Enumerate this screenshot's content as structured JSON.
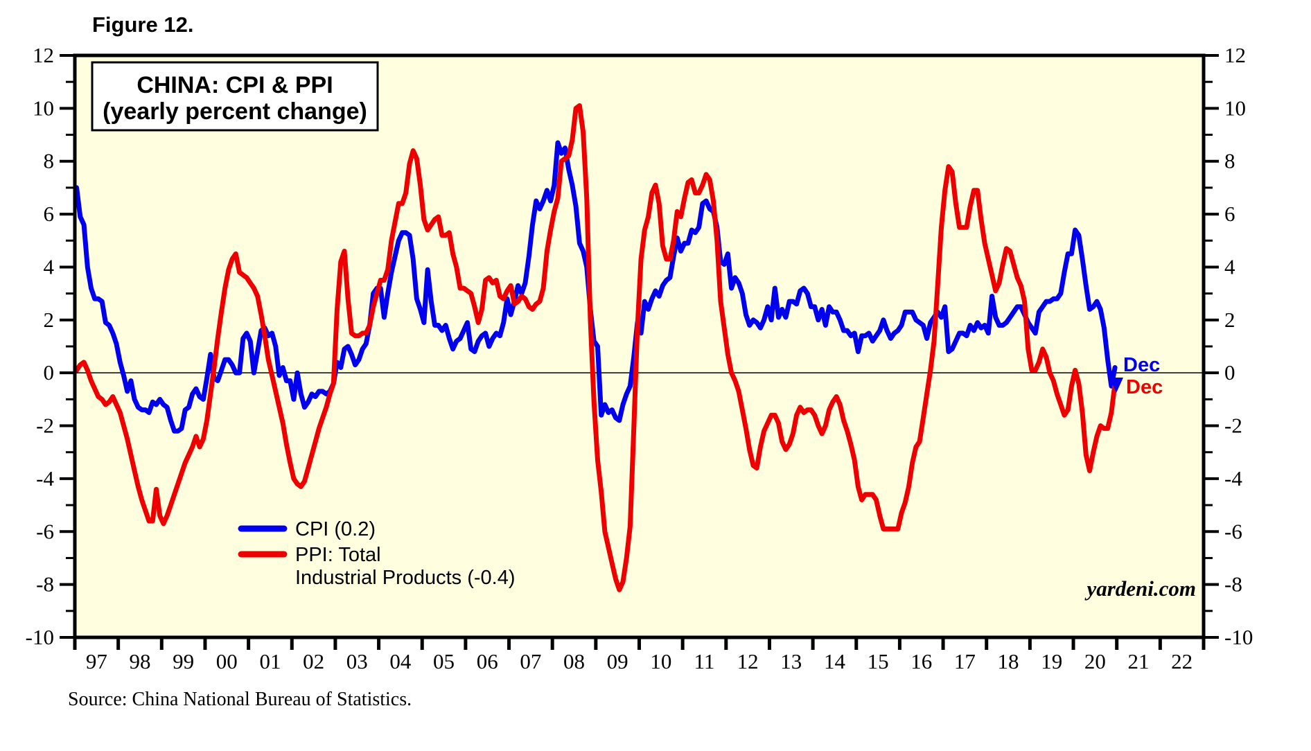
{
  "figure_label": "Figure 12.",
  "title": {
    "line1": "CHINA: CPI & PPI",
    "line2": "(yearly percent change)"
  },
  "legend": {
    "cpi_label": "CPI (0.2)",
    "ppi_label_line1": "PPI: Total",
    "ppi_label_line2": "Industrial Products (-0.4)"
  },
  "end_labels": {
    "cpi": "Dec",
    "ppi": "Dec"
  },
  "watermark": "yardeni.com",
  "source": "Source: China National Bureau of Statistics.",
  "colors": {
    "cpi": "#0000EE",
    "ppi": "#EE0000",
    "plot_background": "#FFFFE0",
    "frame": "#000000"
  },
  "chart_data": {
    "type": "line",
    "title": "CHINA: CPI & PPI (yearly percent change)",
    "frequency": "monthly",
    "x_start": "1997-01",
    "x_end": "2020-12",
    "x_axis_years": [
      1997,
      2023
    ],
    "x_tick_labels": [
      "97",
      "98",
      "99",
      "00",
      "01",
      "02",
      "03",
      "04",
      "05",
      "06",
      "07",
      "08",
      "09",
      "10",
      "11",
      "12",
      "13",
      "14",
      "15",
      "16",
      "17",
      "18",
      "19",
      "20",
      "21",
      "22"
    ],
    "ylim": [
      -10,
      12
    ],
    "y_major_ticks": [
      12,
      10,
      8,
      6,
      4,
      2,
      0,
      -2,
      -4,
      -6,
      -8,
      -10
    ],
    "y_minor_ticks": [
      11,
      9,
      7,
      5,
      3,
      1,
      -1,
      -3,
      -5,
      -7,
      -9
    ],
    "zero_line": true,
    "legend_position": "bottom-left-inside",
    "series": [
      {
        "name": "CPI",
        "color": "#0000EE",
        "last_point_label": "Dec",
        "last_value": 0.2,
        "values": [
          7.0,
          5.9,
          5.6,
          4.0,
          3.2,
          2.8,
          2.8,
          2.7,
          1.9,
          1.8,
          1.5,
          1.1,
          0.4,
          -0.1,
          -0.7,
          -0.3,
          -1.0,
          -1.3,
          -1.4,
          -1.4,
          -1.5,
          -1.1,
          -1.2,
          -1.0,
          -1.2,
          -1.3,
          -1.8,
          -2.2,
          -2.2,
          -2.1,
          -1.4,
          -1.3,
          -0.8,
          -0.6,
          -0.9,
          -1.0,
          -0.2,
          0.7,
          -0.2,
          -0.3,
          0.1,
          0.5,
          0.5,
          0.3,
          0.0,
          0.0,
          1.3,
          1.5,
          1.2,
          0.0,
          0.8,
          1.6,
          1.7,
          1.4,
          1.5,
          1.0,
          -0.1,
          0.2,
          -0.3,
          -0.3,
          -1.0,
          0.0,
          -0.8,
          -1.3,
          -1.1,
          -0.8,
          -0.9,
          -0.7,
          -0.7,
          -0.8,
          -0.7,
          -0.4,
          0.4,
          0.2,
          0.9,
          1.0,
          0.7,
          0.3,
          0.5,
          0.9,
          1.1,
          1.8,
          3.0,
          3.2,
          3.2,
          2.1,
          3.0,
          3.8,
          4.4,
          5.0,
          5.3,
          5.3,
          5.2,
          4.3,
          2.8,
          2.4,
          1.9,
          3.9,
          2.7,
          1.8,
          1.8,
          1.6,
          1.8,
          1.3,
          0.9,
          1.2,
          1.3,
          1.6,
          1.9,
          0.9,
          0.8,
          1.2,
          1.4,
          1.5,
          1.0,
          1.3,
          1.5,
          1.4,
          1.9,
          2.8,
          2.2,
          2.7,
          3.3,
          3.0,
          3.4,
          4.4,
          5.6,
          6.5,
          6.2,
          6.5,
          6.9,
          6.5,
          7.1,
          8.7,
          8.3,
          8.5,
          7.7,
          7.1,
          6.3,
          4.9,
          4.6,
          4.0,
          2.4,
          1.2,
          1.0,
          -1.6,
          -1.2,
          -1.5,
          -1.4,
          -1.7,
          -1.8,
          -1.2,
          -0.8,
          -0.5,
          0.6,
          1.9,
          1.5,
          2.7,
          2.4,
          2.8,
          3.1,
          2.9,
          3.3,
          3.5,
          3.6,
          4.4,
          5.1,
          4.6,
          4.9,
          4.9,
          5.4,
          5.3,
          5.5,
          6.4,
          6.5,
          6.2,
          6.1,
          5.5,
          4.2,
          4.1,
          4.5,
          3.2,
          3.6,
          3.4,
          3.0,
          2.2,
          1.8,
          2.0,
          1.9,
          1.7,
          2.0,
          2.5,
          2.0,
          3.2,
          2.1,
          2.4,
          2.1,
          2.7,
          2.7,
          2.6,
          3.1,
          3.2,
          3.0,
          2.5,
          2.5,
          2.0,
          2.4,
          1.8,
          2.5,
          2.3,
          2.3,
          2.0,
          1.6,
          1.6,
          1.4,
          1.5,
          0.8,
          1.4,
          1.4,
          1.5,
          1.2,
          1.4,
          1.6,
          2.0,
          1.6,
          1.3,
          1.5,
          1.6,
          1.8,
          2.3,
          2.3,
          2.3,
          2.0,
          1.9,
          1.8,
          1.3,
          1.9,
          2.1,
          2.3,
          2.1,
          2.5,
          0.8,
          0.9,
          1.2,
          1.5,
          1.5,
          1.4,
          1.8,
          1.6,
          1.9,
          1.7,
          1.8,
          1.5,
          2.9,
          2.1,
          1.8,
          1.8,
          1.9,
          2.1,
          2.3,
          2.5,
          2.5,
          2.2,
          1.9,
          1.7,
          1.5,
          2.3,
          2.5,
          2.7,
          2.7,
          2.8,
          2.8,
          3.0,
          3.8,
          4.5,
          4.5,
          5.4,
          5.2,
          4.3,
          3.3,
          2.4,
          2.5,
          2.7,
          2.4,
          1.7,
          0.5,
          -0.5,
          0.2
        ]
      },
      {
        "name": "PPI: Total Industrial Products",
        "color": "#EE0000",
        "last_point_label": "Dec",
        "last_value": -0.4,
        "values": [
          0.1,
          0.3,
          0.4,
          0.1,
          -0.3,
          -0.6,
          -0.9,
          -1.0,
          -1.2,
          -1.1,
          -0.9,
          -1.2,
          -1.5,
          -2.0,
          -2.5,
          -3.1,
          -3.7,
          -4.3,
          -4.8,
          -5.2,
          -5.6,
          -5.6,
          -4.4,
          -5.4,
          -5.7,
          -5.4,
          -5.0,
          -4.6,
          -4.2,
          -3.8,
          -3.4,
          -3.1,
          -2.8,
          -2.4,
          -2.8,
          -2.5,
          -1.8,
          -0.8,
          0.2,
          1.3,
          2.3,
          3.2,
          3.9,
          4.3,
          4.5,
          3.8,
          3.7,
          3.6,
          3.4,
          3.2,
          2.9,
          2.2,
          1.4,
          0.5,
          -0.1,
          -0.7,
          -1.3,
          -1.9,
          -2.7,
          -3.4,
          -4.0,
          -4.2,
          -4.3,
          -4.1,
          -3.6,
          -3.1,
          -2.6,
          -2.1,
          -1.7,
          -1.3,
          -0.8,
          -0.4,
          2.4,
          4.2,
          4.6,
          2.8,
          1.5,
          1.4,
          1.4,
          1.5,
          1.5,
          1.8,
          2.5,
          3.0,
          3.5,
          3.5,
          3.9,
          5.0,
          5.7,
          6.4,
          6.4,
          6.8,
          7.9,
          8.4,
          8.1,
          7.1,
          5.8,
          5.4,
          5.6,
          5.8,
          5.9,
          5.2,
          5.2,
          5.3,
          4.5,
          4.0,
          3.2,
          3.2,
          3.1,
          3.0,
          2.5,
          1.9,
          2.4,
          3.5,
          3.6,
          3.4,
          3.5,
          2.9,
          2.8,
          3.1,
          3.3,
          2.6,
          2.7,
          2.9,
          2.8,
          2.5,
          2.4,
          2.6,
          2.7,
          3.2,
          4.6,
          5.4,
          6.1,
          6.6,
          8.0,
          8.1,
          8.2,
          8.8,
          10.0,
          10.1,
          9.1,
          6.6,
          2.0,
          -1.1,
          -3.3,
          -4.5,
          -6.0,
          -6.6,
          -7.2,
          -7.8,
          -8.2,
          -7.9,
          -7.0,
          -5.8,
          -2.1,
          1.7,
          4.3,
          5.4,
          5.9,
          6.8,
          7.1,
          6.4,
          4.8,
          4.3,
          4.3,
          5.0,
          6.1,
          5.9,
          6.6,
          7.2,
          7.3,
          6.8,
          6.8,
          7.1,
          7.5,
          7.3,
          6.5,
          5.0,
          2.7,
          1.7,
          0.7,
          0.0,
          -0.3,
          -0.7,
          -1.4,
          -2.1,
          -2.9,
          -3.5,
          -3.6,
          -2.8,
          -2.2,
          -1.9,
          -1.6,
          -1.6,
          -1.9,
          -2.6,
          -2.9,
          -2.7,
          -2.3,
          -1.6,
          -1.3,
          -1.5,
          -1.4,
          -1.4,
          -1.6,
          -2.0,
          -2.3,
          -2.0,
          -1.4,
          -1.1,
          -0.9,
          -1.2,
          -1.8,
          -2.2,
          -2.7,
          -3.3,
          -4.3,
          -4.8,
          -4.6,
          -4.6,
          -4.6,
          -4.8,
          -5.4,
          -5.9,
          -5.9,
          -5.9,
          -5.9,
          -5.9,
          -5.3,
          -4.9,
          -4.3,
          -3.4,
          -2.8,
          -2.6,
          -1.7,
          -0.8,
          0.1,
          1.2,
          3.3,
          5.5,
          6.9,
          7.8,
          7.6,
          6.4,
          5.5,
          5.5,
          5.5,
          6.3,
          6.9,
          6.9,
          5.8,
          4.9,
          4.3,
          3.7,
          3.1,
          3.4,
          4.1,
          4.7,
          4.6,
          4.1,
          3.6,
          3.3,
          2.7,
          0.9,
          0.1,
          0.1,
          0.4,
          0.9,
          0.6,
          0.0,
          -0.3,
          -0.8,
          -1.2,
          -1.6,
          -1.4,
          -0.5,
          0.1,
          -0.4,
          -1.5,
          -3.1,
          -3.7,
          -3.0,
          -2.4,
          -2.0,
          -2.1,
          -2.1,
          -1.5,
          -0.4
        ]
      }
    ]
  }
}
